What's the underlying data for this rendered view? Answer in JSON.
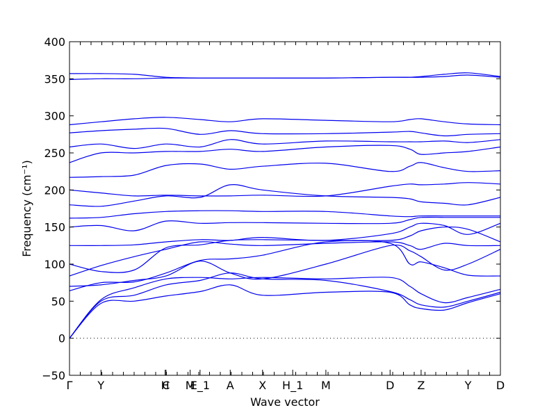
{
  "chart_data": {
    "type": "line",
    "title": "",
    "xlabel": "Wave vector",
    "ylabel": "Frequency (cm⁻¹)",
    "ylim": [
      -50,
      400
    ],
    "yticks": [
      -50,
      0,
      50,
      100,
      150,
      200,
      250,
      300,
      350,
      400
    ],
    "x_high_symmetry_points": [
      {
        "label": "Γ",
        "x": 0.0
      },
      {
        "label": "Y",
        "x": 0.073
      },
      {
        "label": "H",
        "x": 0.222
      },
      {
        "label": "C",
        "x": 0.224
      },
      {
        "label": "M",
        "x": 0.28
      },
      {
        "label": "E_1",
        "x": 0.303
      },
      {
        "label": "A",
        "x": 0.373
      },
      {
        "label": "X",
        "x": 0.448
      },
      {
        "label": "H_1",
        "x": 0.518
      },
      {
        "label": "M",
        "x": 0.595
      },
      {
        "label": "D",
        "x": 0.744
      },
      {
        "label": "Z",
        "x": 0.816
      },
      {
        "label": "Y",
        "x": 0.925
      },
      {
        "label": "D",
        "x": 1.0
      }
    ],
    "zero_line": true,
    "series": [
      {
        "x": [
          0,
          0.073,
          0.15,
          0.224,
          0.303,
          0.373,
          0.448,
          0.595,
          0.744,
          0.79,
          0.816,
          0.87,
          0.925,
          1.0
        ],
        "values": [
          0,
          47,
          50,
          57,
          63,
          72,
          58,
          62,
          62,
          45,
          40,
          38,
          48,
          60
        ]
      },
      {
        "x": [
          0,
          0.073,
          0.15,
          0.224,
          0.303,
          0.373,
          0.448,
          0.595,
          0.744,
          0.79,
          0.816,
          0.87,
          0.925,
          1.0
        ],
        "values": [
          0,
          50,
          58,
          72,
          78,
          88,
          80,
          78,
          63,
          52,
          45,
          42,
          50,
          62
        ]
      },
      {
        "x": [
          0,
          0.073,
          0.15,
          0.224,
          0.303,
          0.373,
          0.448,
          0.595,
          0.744,
          0.79,
          0.816,
          0.87,
          0.925,
          1.0
        ],
        "values": [
          0,
          52,
          68,
          80,
          82,
          80,
          82,
          80,
          82,
          70,
          60,
          48,
          55,
          66
        ]
      },
      {
        "x": [
          0,
          0.073,
          0.15,
          0.224,
          0.303,
          0.373,
          0.448,
          0.595,
          0.744,
          0.79,
          0.816,
          0.87,
          0.925,
          1.0
        ],
        "values": [
          64,
          75,
          76,
          88,
          105,
          107,
          112,
          130,
          128,
          100,
          103,
          95,
          85,
          84
        ]
      },
      {
        "x": [
          0,
          0.073,
          0.15,
          0.224,
          0.303,
          0.373,
          0.448,
          0.595,
          0.744,
          0.79,
          0.816,
          0.87,
          0.925,
          1.0
        ],
        "values": [
          70,
          72,
          78,
          84,
          104,
          88,
          80,
          100,
          125,
          118,
          110,
          92,
          100,
          120
        ]
      },
      {
        "x": [
          0,
          0.073,
          0.15,
          0.224,
          0.303,
          0.373,
          0.448,
          0.595,
          0.744,
          0.79,
          0.816,
          0.87,
          0.925,
          1.0
        ],
        "values": [
          84,
          98,
          110,
          120,
          130,
          127,
          125,
          128,
          130,
          125,
          120,
          128,
          125,
          125
        ]
      },
      {
        "x": [
          0,
          0.073,
          0.15,
          0.224,
          0.303,
          0.373,
          0.448,
          0.595,
          0.744,
          0.79,
          0.816,
          0.87,
          0.925,
          1.0
        ],
        "values": [
          100,
          90,
          92,
          122,
          126,
          132,
          133,
          132,
          132,
          138,
          145,
          150,
          147,
          130
        ]
      },
      {
        "x": [
          0,
          0.073,
          0.15,
          0.224,
          0.303,
          0.373,
          0.448,
          0.595,
          0.744,
          0.79,
          0.816,
          0.87,
          0.925,
          1.0
        ],
        "values": [
          125,
          125,
          126,
          130,
          133,
          132,
          136,
          132,
          141,
          150,
          155,
          152,
          140,
          155
        ]
      },
      {
        "x": [
          0,
          0.073,
          0.15,
          0.224,
          0.303,
          0.373,
          0.448,
          0.595,
          0.744,
          0.79,
          0.816,
          0.87,
          0.925,
          1.0
        ],
        "values": [
          150,
          152,
          145,
          158,
          155,
          156,
          156,
          155,
          155,
          160,
          163,
          163,
          163,
          163
        ]
      },
      {
        "x": [
          0,
          0.073,
          0.15,
          0.224,
          0.303,
          0.373,
          0.448,
          0.595,
          0.744,
          0.79,
          0.816,
          0.87,
          0.925,
          1.0
        ],
        "values": [
          162,
          163,
          168,
          171,
          172,
          172,
          171,
          171,
          165,
          164,
          165,
          165,
          165,
          165
        ]
      },
      {
        "x": [
          0,
          0.073,
          0.15,
          0.224,
          0.303,
          0.373,
          0.448,
          0.595,
          0.744,
          0.79,
          0.816,
          0.87,
          0.925,
          1.0
        ],
        "values": [
          180,
          178,
          185,
          192,
          190,
          207,
          200,
          192,
          190,
          188,
          184,
          182,
          180,
          190
        ]
      },
      {
        "x": [
          0,
          0.073,
          0.15,
          0.224,
          0.303,
          0.373,
          0.448,
          0.595,
          0.744,
          0.79,
          0.816,
          0.87,
          0.925,
          1.0
        ],
        "values": [
          200,
          196,
          192,
          193,
          192,
          192,
          193,
          192,
          205,
          208,
          207,
          208,
          210,
          208
        ]
      },
      {
        "x": [
          0,
          0.073,
          0.15,
          0.224,
          0.303,
          0.373,
          0.448,
          0.595,
          0.744,
          0.79,
          0.816,
          0.87,
          0.925,
          1.0
        ],
        "values": [
          217,
          218,
          220,
          233,
          235,
          228,
          232,
          236,
          225,
          232,
          237,
          230,
          225,
          226
        ]
      },
      {
        "x": [
          0,
          0.073,
          0.15,
          0.224,
          0.303,
          0.373,
          0.448,
          0.595,
          0.744,
          0.79,
          0.816,
          0.87,
          0.925,
          1.0
        ],
        "values": [
          237,
          250,
          250,
          252,
          252,
          255,
          252,
          258,
          260,
          255,
          248,
          250,
          252,
          258
        ]
      },
      {
        "x": [
          0,
          0.073,
          0.15,
          0.224,
          0.303,
          0.373,
          0.448,
          0.595,
          0.744,
          0.79,
          0.816,
          0.87,
          0.925,
          1.0
        ],
        "values": [
          258,
          262,
          256,
          262,
          258,
          268,
          262,
          266,
          265,
          265,
          265,
          266,
          264,
          268
        ]
      },
      {
        "x": [
          0,
          0.073,
          0.15,
          0.224,
          0.303,
          0.373,
          0.448,
          0.595,
          0.744,
          0.79,
          0.816,
          0.87,
          0.925,
          1.0
        ],
        "values": [
          277,
          280,
          282,
          283,
          275,
          280,
          276,
          276,
          278,
          279,
          277,
          273,
          275,
          276
        ]
      },
      {
        "x": [
          0,
          0.073,
          0.15,
          0.224,
          0.303,
          0.373,
          0.448,
          0.595,
          0.744,
          0.79,
          0.816,
          0.87,
          0.925,
          1.0
        ],
        "values": [
          288,
          292,
          296,
          298,
          295,
          292,
          296,
          294,
          292,
          295,
          296,
          292,
          289,
          288
        ]
      },
      {
        "x": [
          0,
          0.073,
          0.15,
          0.224,
          0.303,
          0.373,
          0.448,
          0.595,
          0.744,
          0.79,
          0.816,
          0.87,
          0.925,
          1.0
        ],
        "values": [
          349,
          350,
          350,
          351,
          351,
          351,
          351,
          351,
          352,
          352,
          352,
          353,
          355,
          352
        ]
      },
      {
        "x": [
          0,
          0.073,
          0.15,
          0.224,
          0.303,
          0.373,
          0.448,
          0.595,
          0.744,
          0.79,
          0.816,
          0.87,
          0.925,
          1.0
        ],
        "values": [
          357,
          357,
          356,
          352,
          351,
          351,
          351,
          351,
          352,
          352,
          353,
          356,
          358,
          353
        ]
      }
    ]
  }
}
